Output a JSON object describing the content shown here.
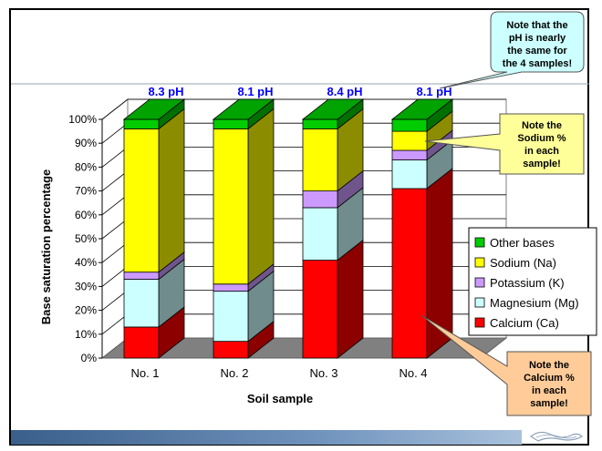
{
  "chart_data": {
    "type": "bar",
    "stacked": true,
    "three_d": true,
    "categories": [
      "No. 1",
      "No. 2",
      "No. 3",
      "No. 4"
    ],
    "top_labels": [
      "8.3 pH",
      "8.1 pH",
      "8.4 pH",
      "8.1 pH"
    ],
    "xlabel": "Soil sample",
    "ylabel": "Base saturation percentage",
    "ylim": [
      0,
      100
    ],
    "yticks": [
      "0%",
      "10%",
      "20%",
      "30%",
      "40%",
      "50%",
      "60%",
      "70%",
      "80%",
      "90%",
      "100%"
    ],
    "grid": true,
    "legend_position": "right",
    "series": [
      {
        "name": "Calcium (Ca)",
        "color": "#ff0000",
        "values": [
          13,
          7,
          41,
          71
        ]
      },
      {
        "name": "Magnesium (Mg)",
        "color": "#ccffff",
        "values": [
          20,
          21,
          22,
          12
        ]
      },
      {
        "name": "Potassium (K)",
        "color": "#cc99ff",
        "values": [
          3,
          3,
          7,
          4
        ]
      },
      {
        "name": "Sodium (Na)",
        "color": "#ffff00",
        "values": [
          60,
          65,
          26,
          8
        ]
      },
      {
        "name": "Other bases",
        "color": "#00cc00",
        "values": [
          4,
          4,
          4,
          5
        ]
      }
    ]
  },
  "callouts": {
    "ph": [
      "Note that the",
      "pH is nearly",
      "the same for",
      "the 4 samples!"
    ],
    "sodium": [
      "Note the",
      "Sodium %",
      "in each",
      "sample!"
    ],
    "calcium": [
      "Note the",
      "Calcium %",
      "in each",
      "sample!"
    ]
  },
  "colors": {
    "ph_callout": "#ccffff",
    "sodium_callout": "#ffff99",
    "calcium_callout": "#ffcc99",
    "top_label": "#0000ff",
    "footer": "#3a5f8a"
  }
}
